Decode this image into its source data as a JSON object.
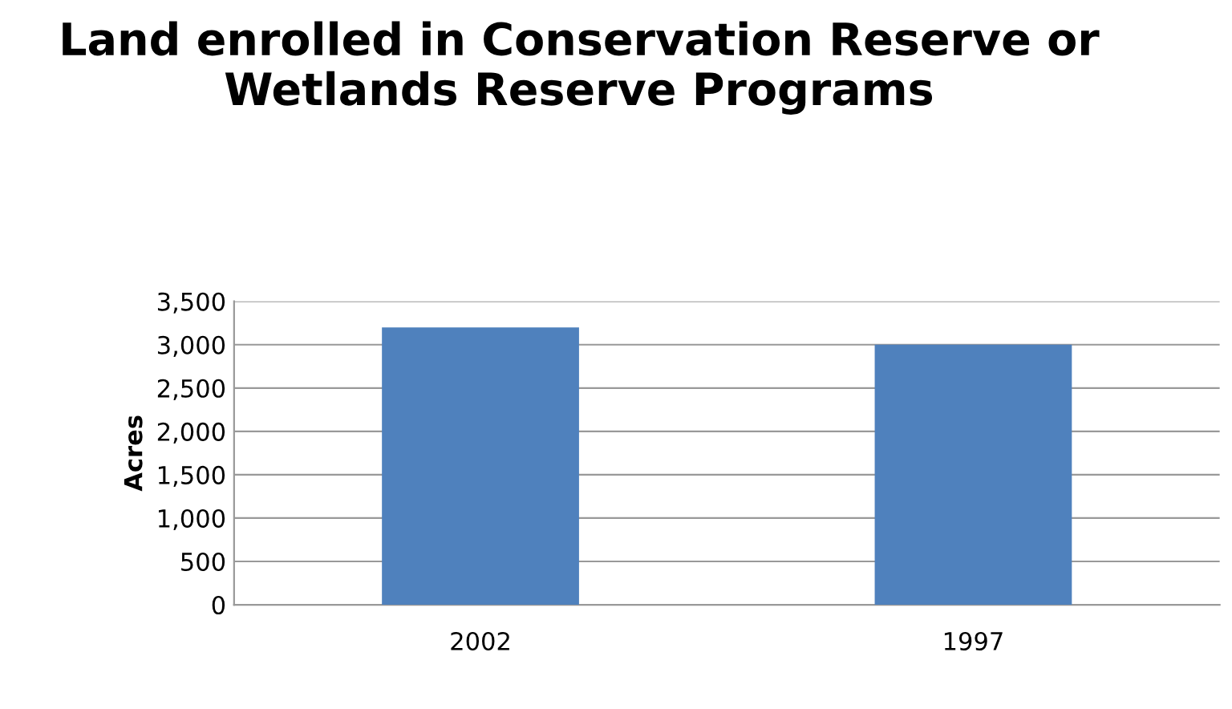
{
  "chart_data": {
    "type": "bar",
    "title": "Land enrolled in Conservation Reserve or Wetlands Reserve Programs",
    "ylabel": "Acres",
    "categories": [
      "2002",
      "1997"
    ],
    "values": [
      3200,
      3000
    ],
    "color": "#4f81bd",
    "ylim": [
      0,
      3500
    ],
    "yticks": [
      {
        "value": 0,
        "label": "0"
      },
      {
        "value": 500,
        "label": "500"
      },
      {
        "value": 1000,
        "label": "1,000"
      },
      {
        "value": 1500,
        "label": "1,500"
      },
      {
        "value": 2000,
        "label": "2,000"
      },
      {
        "value": 2500,
        "label": "2,500"
      },
      {
        "value": 3000,
        "label": "3,000"
      },
      {
        "value": 3500,
        "label": "3,500"
      }
    ],
    "grid": "y",
    "legend": false
  }
}
